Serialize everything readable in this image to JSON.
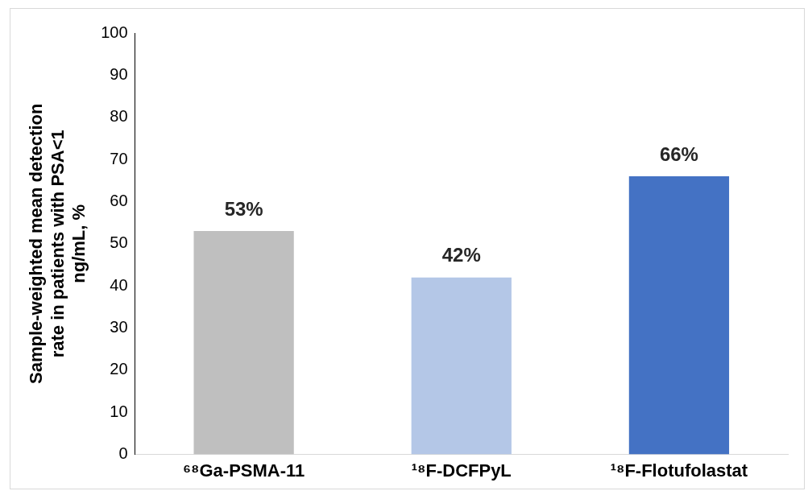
{
  "chart_data": {
    "type": "bar",
    "ylabel": "Sample-weighted mean detection rate in patients with PSA<1 ng/mL, %",
    "categories": [
      "⁶⁸Ga-PSMA-11",
      "¹⁸F-DCFPyL",
      "¹⁸F-Flotufolastat"
    ],
    "values": [
      53,
      42,
      66
    ],
    "colors": [
      "#bfbfbf",
      "#b4c7e7",
      "#4472c4"
    ],
    "value_labels": [
      "53%",
      "42%",
      "66%"
    ],
    "ylim": [
      0,
      100
    ],
    "yticks": [
      0,
      10,
      20,
      30,
      40,
      50,
      60,
      70,
      80,
      90,
      100
    ],
    "grid": false,
    "legend": false
  }
}
